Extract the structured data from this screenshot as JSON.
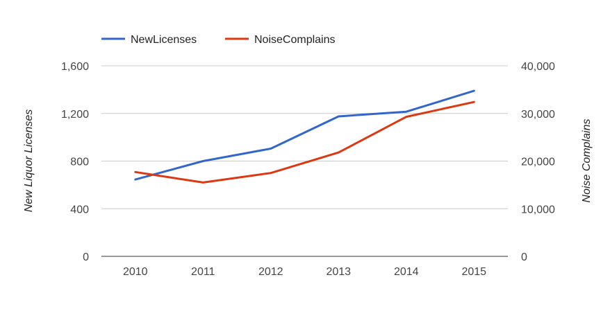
{
  "chart_data": {
    "type": "line",
    "categories": [
      "2010",
      "2011",
      "2012",
      "2013",
      "2014",
      "2015"
    ],
    "series": [
      {
        "name": "NewLicenses",
        "axis": "left",
        "color": "#3366cc",
        "values": [
          645,
          800,
          905,
          1175,
          1215,
          1390
        ]
      },
      {
        "name": "NoiseComplains",
        "axis": "right",
        "color": "#dc3912",
        "values": [
          17700,
          15500,
          17500,
          21800,
          29300,
          32400
        ]
      }
    ],
    "ylabel_left": "New Liquor Licenses",
    "ylabel_right": "Noise Complains",
    "ylim_left": [
      0,
      1600
    ],
    "ylim_right": [
      0,
      40000
    ],
    "yticks_left": [
      "0",
      "400",
      "800",
      "1,200",
      "1,600"
    ],
    "yticks_right": [
      "0",
      "10,000",
      "20,000",
      "30,000",
      "40,000"
    ],
    "grid": true,
    "legend_position": "top-left"
  }
}
